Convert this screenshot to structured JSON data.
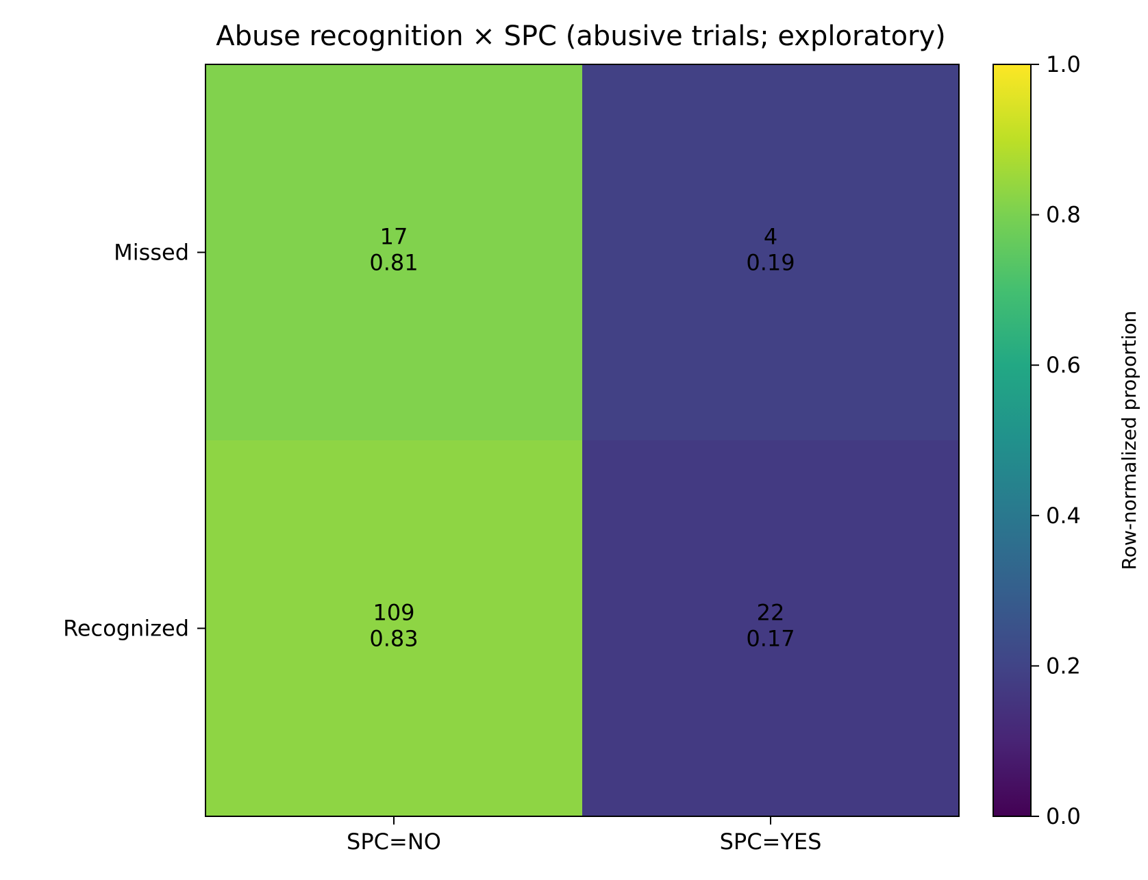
{
  "chart_data": {
    "type": "heatmap",
    "title": "Abuse recognition × SPC (abusive trials; exploratory)",
    "rows": [
      "Missed",
      "Recognized"
    ],
    "columns": [
      "SPC=NO",
      "SPC=YES"
    ],
    "counts": [
      [
        17,
        4
      ],
      [
        109,
        22
      ]
    ],
    "proportions": [
      [
        0.81,
        0.19
      ],
      [
        0.83,
        0.17
      ]
    ],
    "cell_labels": [
      [
        {
          "count": "17",
          "prop": "0.81"
        },
        {
          "count": "4",
          "prop": "0.19"
        }
      ],
      [
        {
          "count": "109",
          "prop": "0.83"
        },
        {
          "count": "22",
          "prop": "0.17"
        }
      ]
    ],
    "colormap": "viridis",
    "colorbar": {
      "label": "Row-normalized proportion",
      "range": [
        0.0,
        1.0
      ],
      "ticks": [
        "0.0",
        "0.2",
        "0.4",
        "0.6",
        "0.8",
        "1.0"
      ]
    }
  }
}
